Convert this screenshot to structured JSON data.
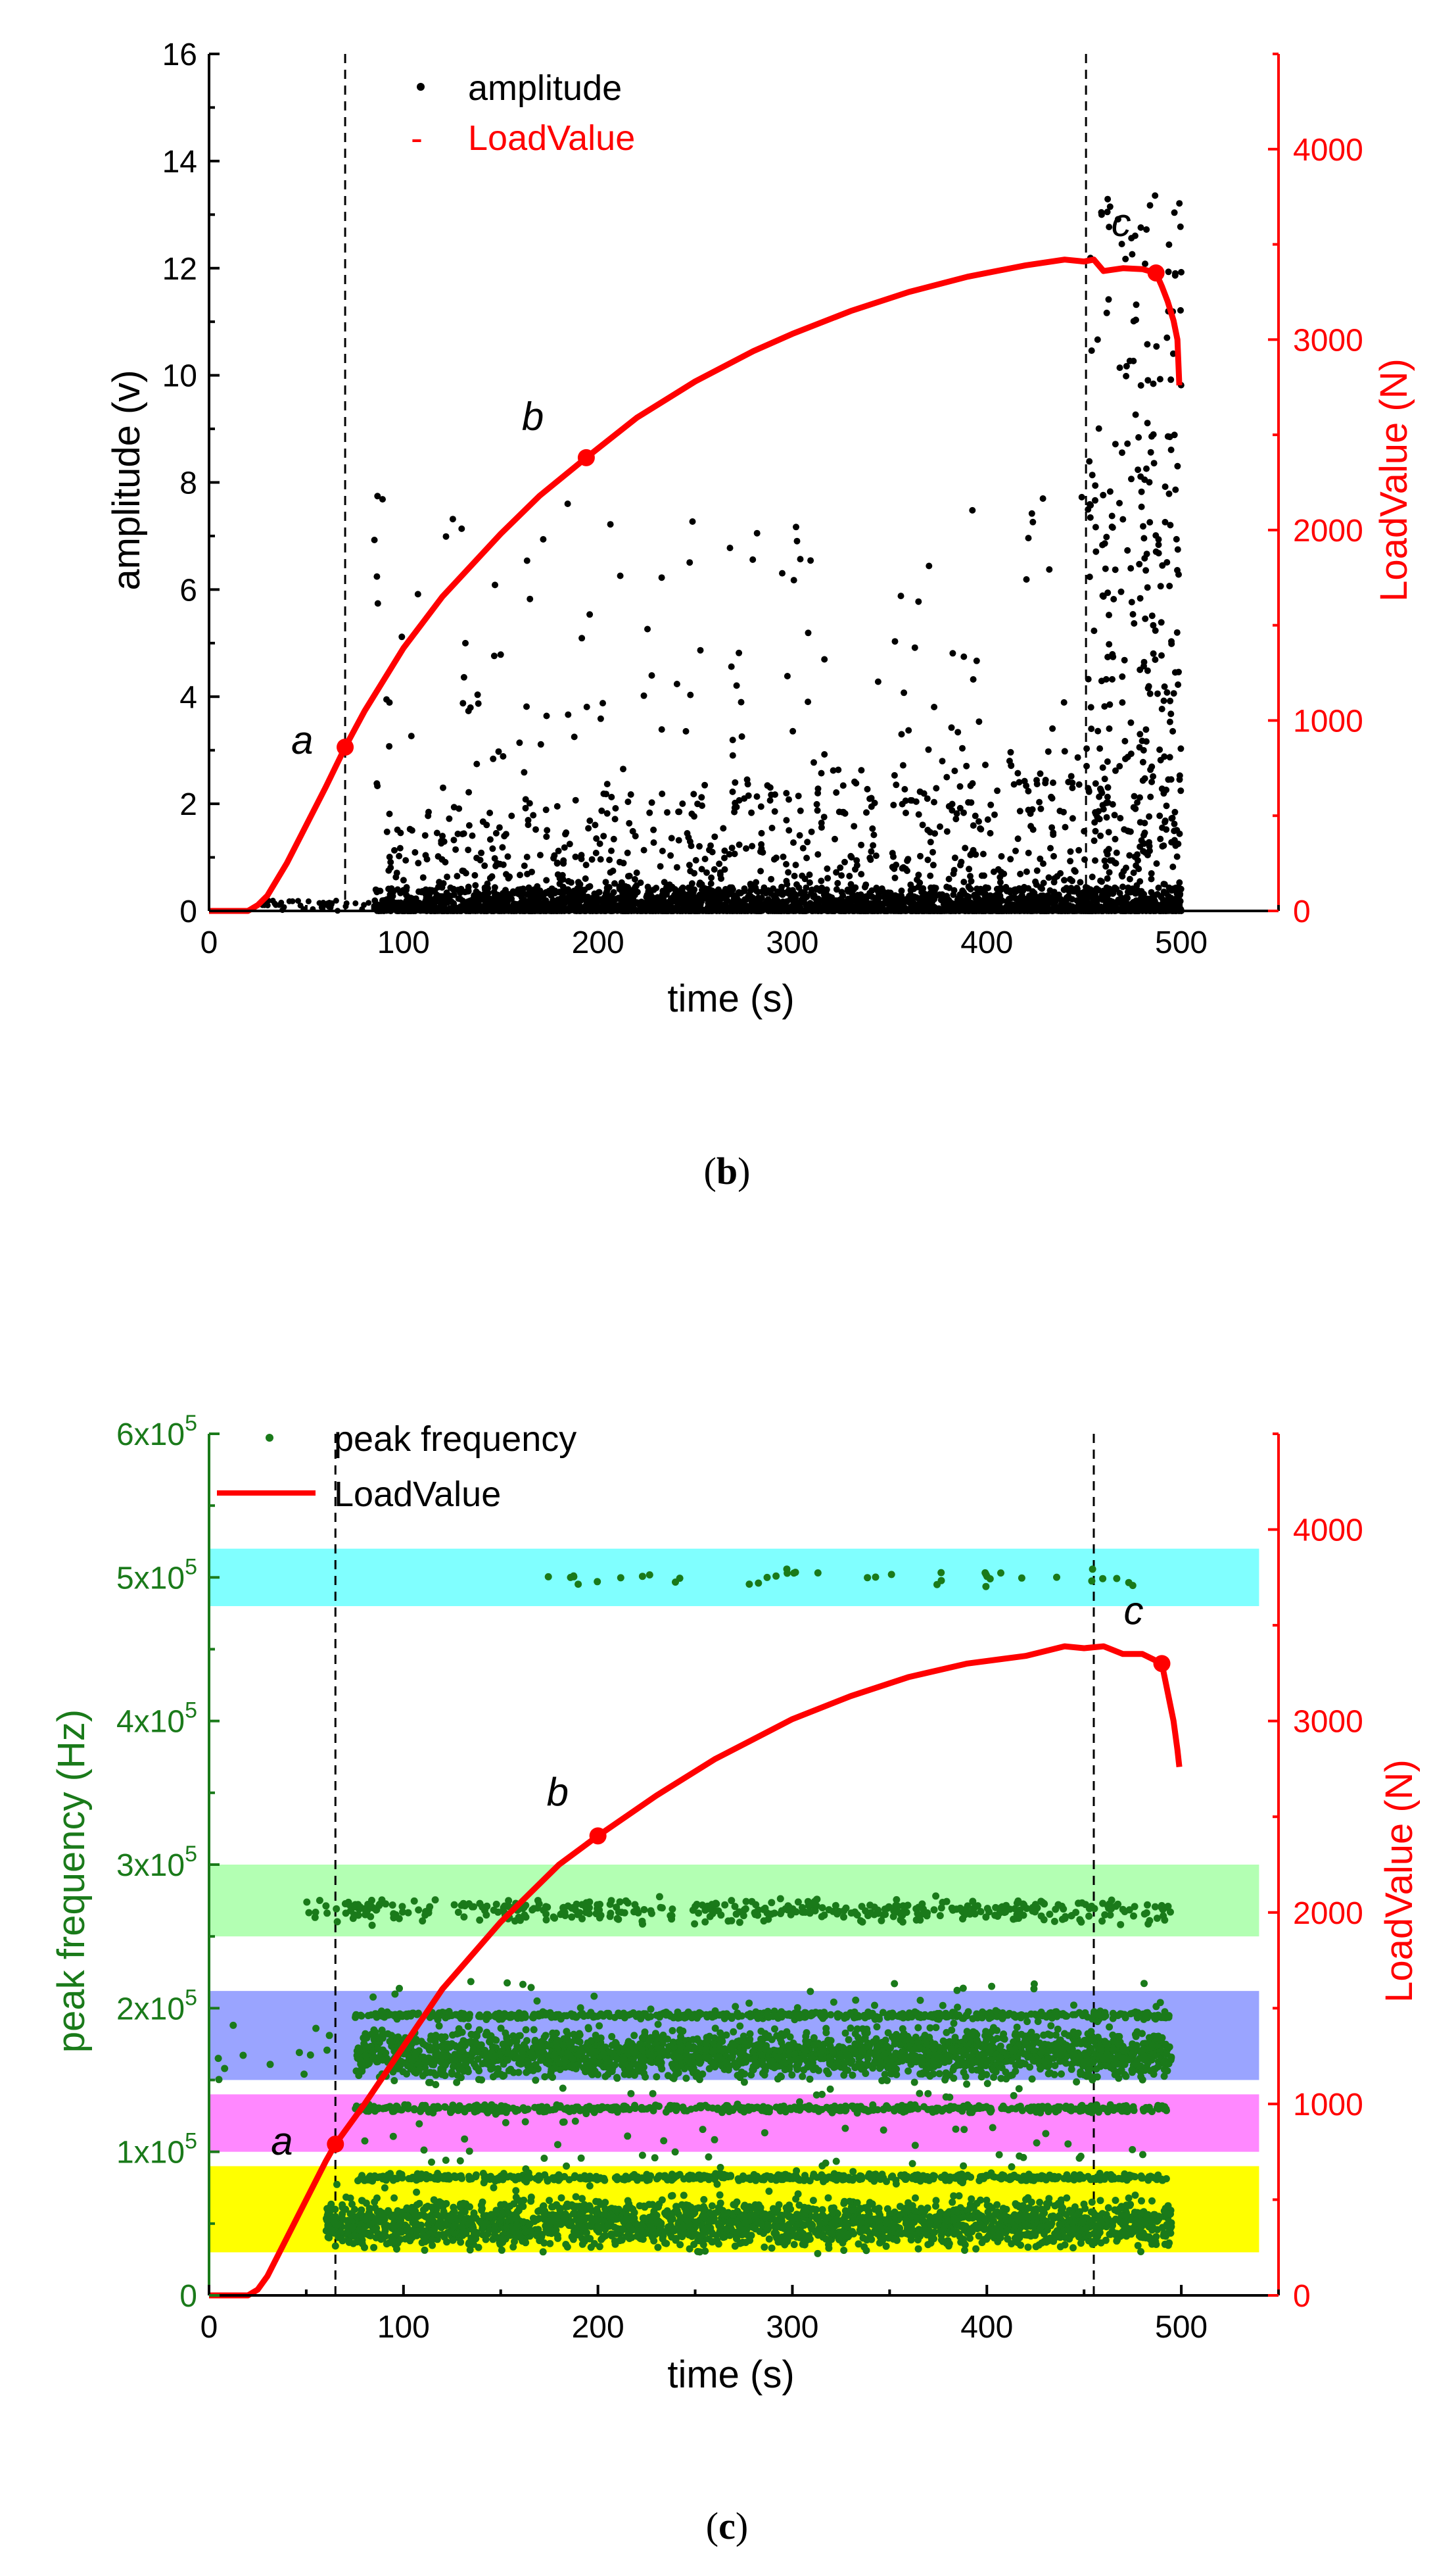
{
  "chart_data": [
    {
      "panel": "b",
      "caption": "b",
      "type": "scatter",
      "xlabel": "time (s)",
      "ylabel": "amplitude (v)",
      "y2label": "LoadValue (N)",
      "xlim": [
        0,
        550
      ],
      "xticks": [
        "0",
        "100",
        "200",
        "300",
        "400",
        "500"
      ],
      "ylim": [
        0,
        16
      ],
      "yticks": [
        "0",
        "2",
        "4",
        "6",
        "8",
        "10",
        "12",
        "14",
        "16"
      ],
      "y2lim": [
        0,
        4500
      ],
      "y2ticks": [
        "0",
        "1000",
        "2000",
        "3000",
        "4000"
      ],
      "legend": [
        "amplitude",
        "LoadValue"
      ],
      "legend_markers": [
        "•",
        "-"
      ],
      "vlines": [
        70,
        451
      ],
      "series": [
        {
          "name": "LoadValue",
          "axis": "right",
          "x": [
            0,
            20,
            25,
            30,
            40,
            50,
            60,
            70,
            80,
            100,
            120,
            150,
            170,
            194,
            220,
            250,
            280,
            300,
            330,
            360,
            390,
            420,
            440,
            450,
            455,
            460,
            470,
            480,
            487,
            490,
            493,
            496,
            498,
            499
          ],
          "values": [
            0,
            0,
            30,
            80,
            250,
            450,
            650,
            860,
            1050,
            1380,
            1650,
            1980,
            2180,
            2380,
            2590,
            2780,
            2940,
            3030,
            3150,
            3250,
            3330,
            3390,
            3420,
            3410,
            3420,
            3360,
            3375,
            3370,
            3350,
            3280,
            3200,
            3100,
            3000,
            2760
          ]
        }
      ],
      "scatter_envelope": {
        "name": "amplitude",
        "x_range": [
          50,
          500
        ],
        "typical_max": 2.5,
        "sparse_max": 7.8,
        "final_burst_x": [
          452,
          500
        ],
        "final_burst_max": 13.4
      },
      "annotations": [
        {
          "text": "a",
          "x": 70,
          "y2": 860
        },
        {
          "text": "b",
          "x": 194,
          "y2": 2380
        },
        {
          "text": "c",
          "x": 487,
          "y2": 3350
        }
      ]
    },
    {
      "panel": "c",
      "caption": "c",
      "type": "scatter",
      "xlabel": "time (s)",
      "ylabel": "peak frequency (Hz)",
      "y2label": "LoadValue (N)",
      "xlim": [
        0,
        550
      ],
      "xticks": [
        "0",
        "100",
        "200",
        "300",
        "400",
        "500"
      ],
      "ylim": [
        0,
        600000
      ],
      "yticks": [
        [
          "0",
          ""
        ],
        [
          "1x10",
          "5"
        ],
        [
          "2x10",
          "5"
        ],
        [
          "3x10",
          "5"
        ],
        [
          "4x10",
          "5"
        ],
        [
          "5x10",
          "5"
        ],
        [
          "6x10",
          "5"
        ]
      ],
      "y2lim": [
        0,
        4500
      ],
      "y2ticks": [
        "0",
        "1000",
        "2000",
        "3000",
        "4000"
      ],
      "legend": [
        "peak frequency",
        "LoadValue"
      ],
      "vlines": [
        65,
        455
      ],
      "bands": [
        {
          "from": 480000,
          "to": 520000,
          "color": "#80ffff"
        },
        {
          "from": 250000,
          "to": 300000,
          "color": "#b3ffb3"
        },
        {
          "from": 150000,
          "to": 212000,
          "color": "#9aa4ff"
        },
        {
          "from": 100000,
          "to": 140000,
          "color": "#ff88ff"
        },
        {
          "from": 30000,
          "to": 90000,
          "color": "#ffff00"
        }
      ],
      "frequency_clusters": [
        {
          "center": 500000,
          "x_range": [
            165,
            490
          ],
          "density": "sparse"
        },
        {
          "center": 268000,
          "x_range": [
            50,
            495
          ],
          "density": "medium"
        },
        {
          "center": 195000,
          "x_range": [
            75,
            495
          ],
          "density": "line"
        },
        {
          "center": 168000,
          "x_range": [
            75,
            495
          ],
          "density": "dense"
        },
        {
          "center": 130000,
          "x_range": [
            75,
            495
          ],
          "density": "line"
        },
        {
          "center": 82000,
          "x_range": [
            75,
            495
          ],
          "density": "line"
        },
        {
          "center": 50000,
          "x_range": [
            60,
            495
          ],
          "density": "dense"
        }
      ],
      "series": [
        {
          "name": "LoadValue",
          "axis": "right",
          "x": [
            0,
            20,
            25,
            30,
            40,
            50,
            60,
            65,
            80,
            100,
            120,
            150,
            180,
            200,
            230,
            260,
            300,
            330,
            360,
            390,
            420,
            440,
            450,
            460,
            470,
            480,
            490,
            493,
            496,
            498,
            499
          ],
          "values": [
            0,
            0,
            30,
            100,
            300,
            500,
            700,
            790,
            1000,
            1300,
            1600,
            1950,
            2250,
            2400,
            2610,
            2800,
            3010,
            3130,
            3230,
            3300,
            3340,
            3390,
            3380,
            3390,
            3350,
            3350,
            3300,
            3150,
            3000,
            2850,
            2760
          ]
        }
      ],
      "annotations": [
        {
          "text": "a",
          "x": 65,
          "y2": 790
        },
        {
          "text": "b",
          "x": 200,
          "y2": 2400
        },
        {
          "text": "c",
          "x": 490,
          "y2": 3300
        }
      ]
    }
  ]
}
